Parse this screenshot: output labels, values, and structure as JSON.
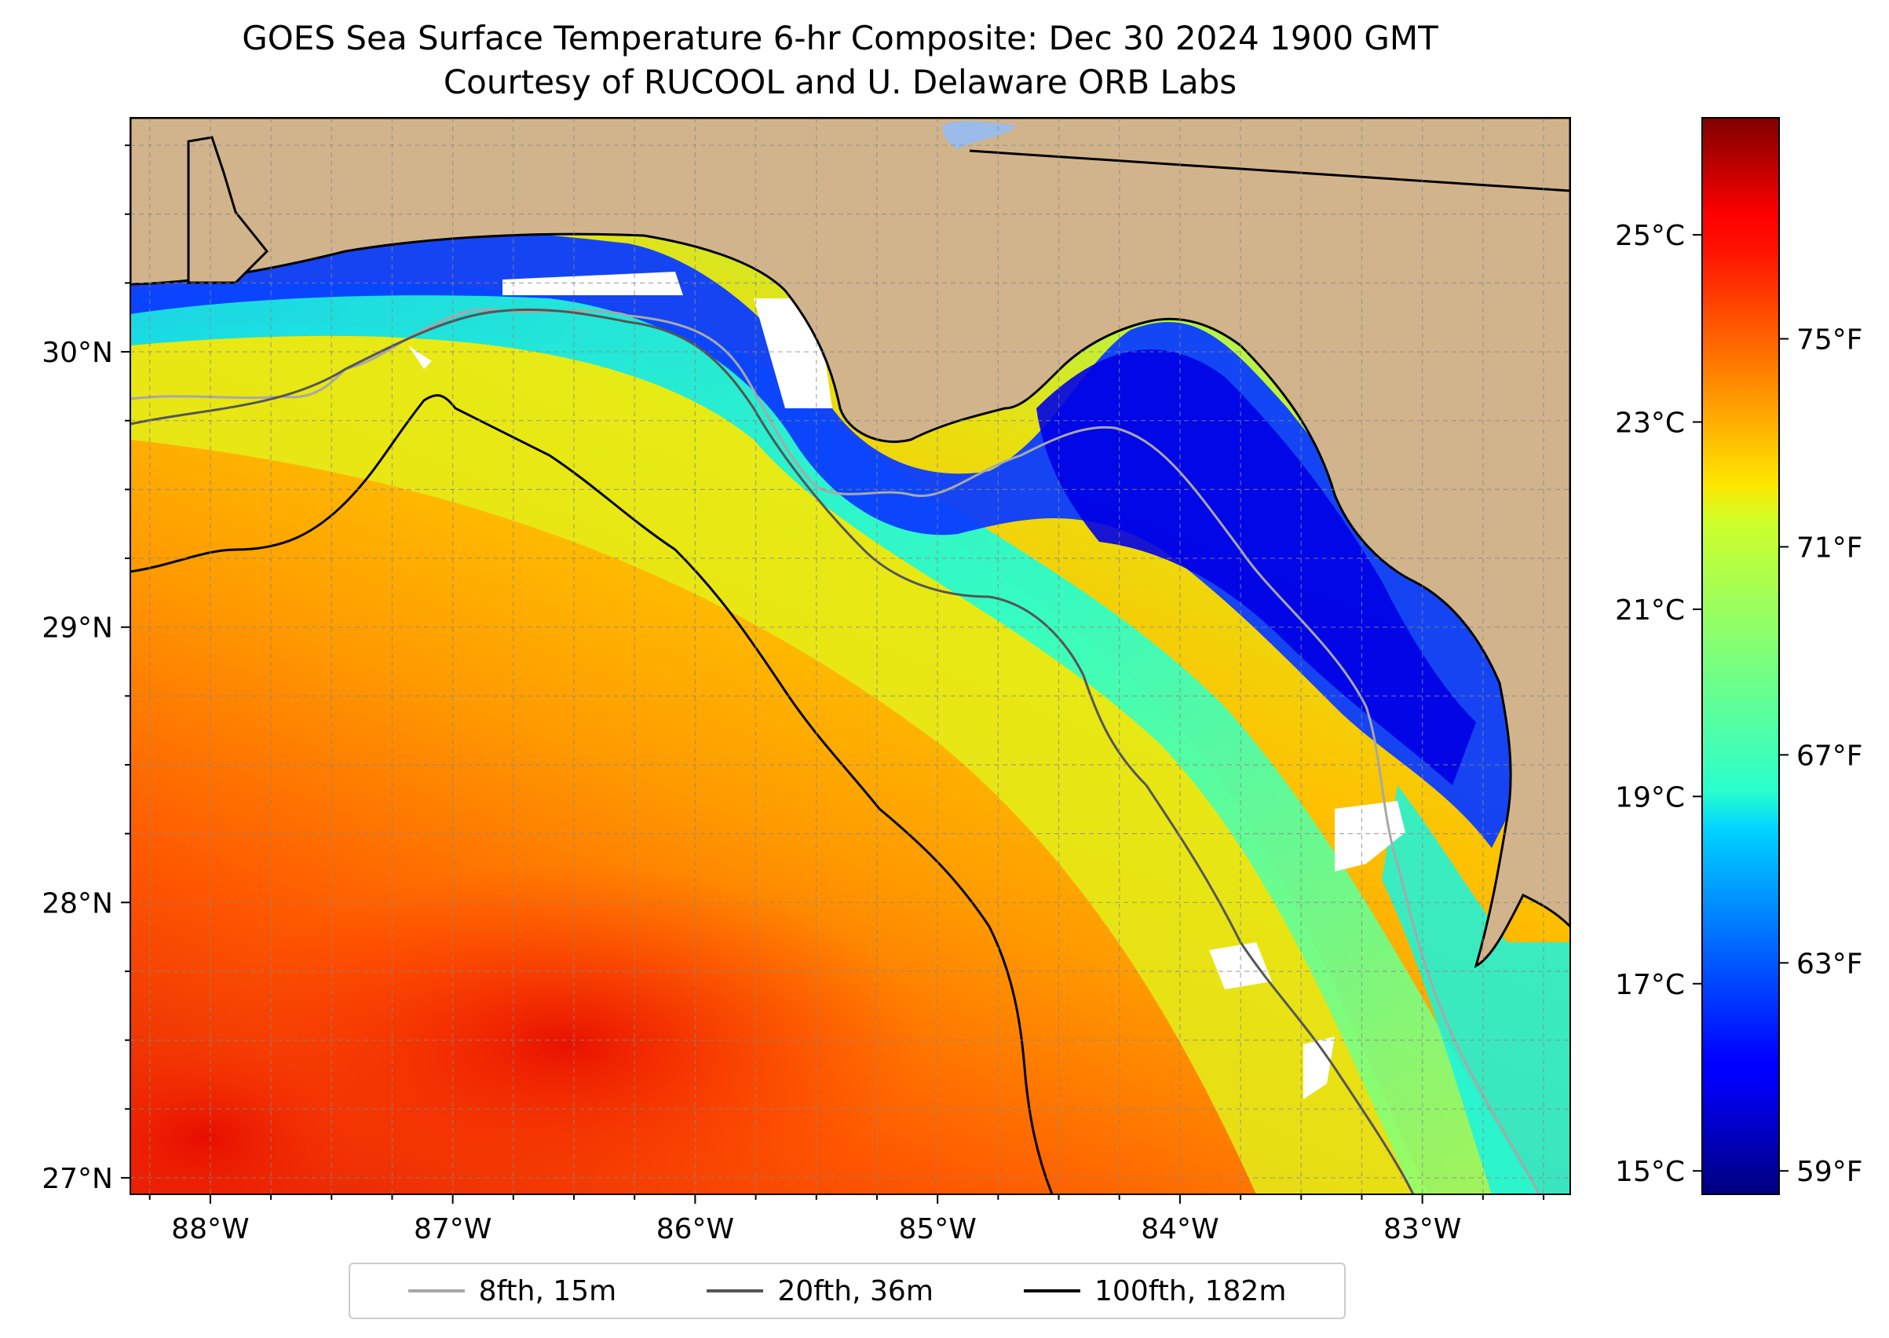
{
  "title": "GOES Sea Surface Temperature 6-hr Composite: Dec 30 2024 1900 GMT",
  "subtitle": "Courtesy of RUCOOL and U. Delaware ORB Labs",
  "map": {
    "lon_range": [
      -88.33,
      -82.39
    ],
    "lat_range": [
      26.94,
      30.85
    ],
    "land_color": "#d2b48c",
    "lat_ticks": [
      {
        "value": 30,
        "label": "30°N"
      },
      {
        "value": 29,
        "label": "29°N"
      },
      {
        "value": 28,
        "label": "28°N"
      },
      {
        "value": 27,
        "label": "27°N"
      }
    ],
    "lon_ticks": [
      {
        "value": -88,
        "label": "88°W"
      },
      {
        "value": -87,
        "label": "87°W"
      },
      {
        "value": -86,
        "label": "86°W"
      },
      {
        "value": -85,
        "label": "85°W"
      },
      {
        "value": -84,
        "label": "84°W"
      },
      {
        "value": -83,
        "label": "83°W"
      }
    ],
    "gridlines": "dashed, every 0.25°"
  },
  "colorbar": {
    "colormap": "jet",
    "range_c": [
      14.75,
      26.25
    ],
    "celsius_ticks": [
      {
        "value": 25,
        "label": "25°C"
      },
      {
        "value": 23,
        "label": "23°C"
      },
      {
        "value": 21,
        "label": "21°C"
      },
      {
        "value": 19,
        "label": "19°C"
      },
      {
        "value": 17,
        "label": "17°C"
      },
      {
        "value": 15,
        "label": "15°C"
      }
    ],
    "fahrenheit_ticks": [
      {
        "value": 75,
        "label": "75°F"
      },
      {
        "value": 71,
        "label": "71°F"
      },
      {
        "value": 67,
        "label": "67°F"
      },
      {
        "value": 63,
        "label": "63°F"
      },
      {
        "value": 59,
        "label": "59°F"
      }
    ]
  },
  "legend": [
    {
      "label": "8fth, 15m",
      "color": "#a8a8a8"
    },
    {
      "label": "20fth, 36m",
      "color": "#555555"
    },
    {
      "label": "100fth, 182m",
      "color": "#000000"
    }
  ]
}
